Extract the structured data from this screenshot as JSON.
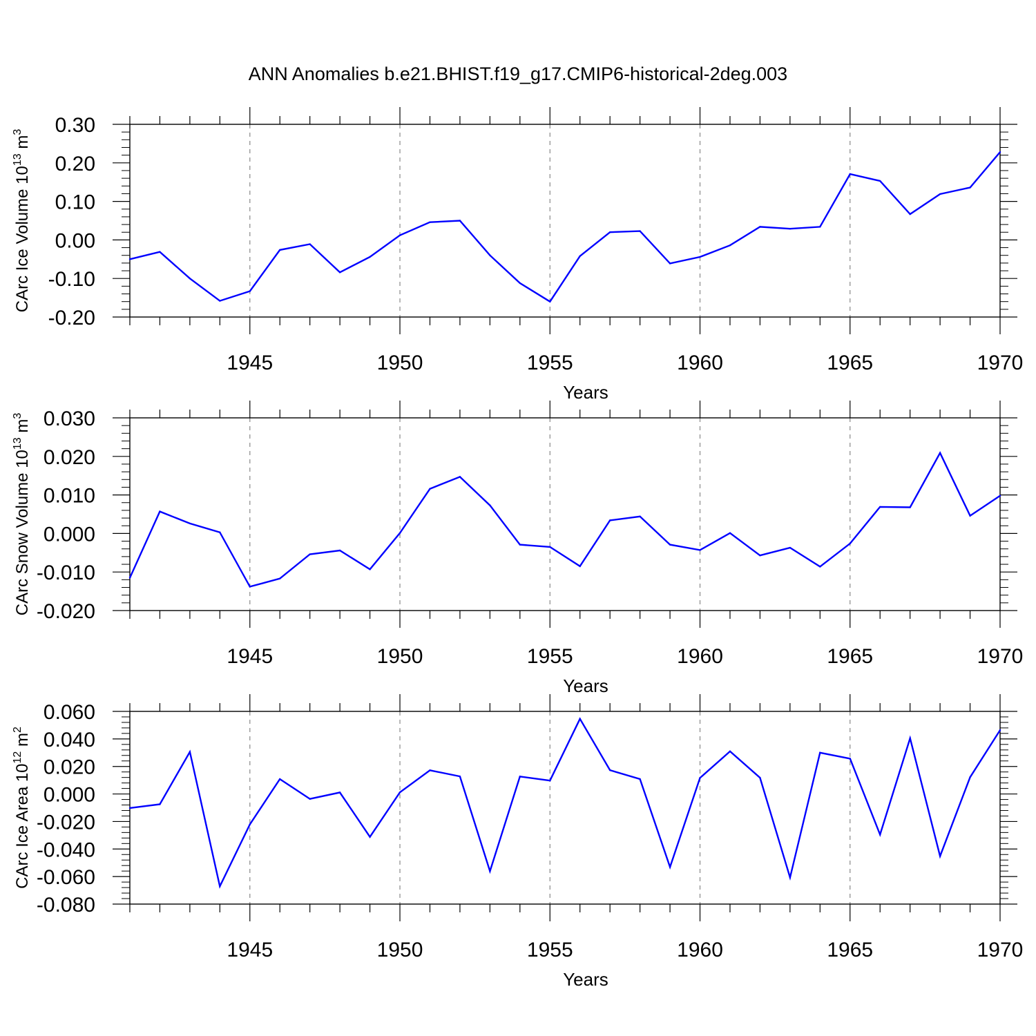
{
  "title": "ANN Anomalies b.e21.BHIST.f19_g17.CMIP6-historical-2deg.003",
  "line_color": "#0000ff",
  "chart_data": [
    {
      "type": "line",
      "ylabel": {
        "text": "CArc Ice Volume 10",
        "exp": "13",
        "unit": " m",
        "unit_exp": "3"
      },
      "xlabel": "Years",
      "xlim": [
        1941,
        1970
      ],
      "x_tick_labels": [
        "1945",
        "1950",
        "1955",
        "1960",
        "1965",
        "1970"
      ],
      "x_ticks": [
        1945,
        1950,
        1955,
        1960,
        1965,
        1970
      ],
      "ylim": [
        -0.2,
        0.3
      ],
      "y_ticks": [
        -0.2,
        -0.1,
        0.0,
        0.1,
        0.2,
        0.3
      ],
      "y_tick_labels": [
        "-0.20",
        "-0.10",
        "0.00",
        "0.10",
        "0.20",
        "0.30"
      ],
      "grid": "vertical dashed at major x ticks",
      "x": [
        1941,
        1942,
        1943,
        1944,
        1945,
        1946,
        1947,
        1948,
        1949,
        1950,
        1951,
        1952,
        1953,
        1954,
        1955,
        1956,
        1957,
        1958,
        1959,
        1960,
        1961,
        1962,
        1963,
        1964,
        1965,
        1966,
        1967,
        1968,
        1969,
        1970
      ],
      "values": [
        -0.05,
        -0.031,
        -0.1,
        -0.158,
        -0.133,
        -0.026,
        -0.011,
        -0.084,
        -0.044,
        0.012,
        0.046,
        0.05,
        -0.04,
        -0.112,
        -0.16,
        -0.042,
        0.02,
        0.023,
        -0.061,
        -0.044,
        -0.014,
        0.034,
        0.029,
        0.034,
        0.171,
        0.153,
        0.067,
        0.119,
        0.136,
        0.228
      ]
    },
    {
      "type": "line",
      "ylabel": {
        "text": "CArc Snow Volume 10",
        "exp": "13",
        "unit": " m",
        "unit_exp": "3"
      },
      "xlabel": "Years",
      "xlim": [
        1941,
        1970
      ],
      "x_tick_labels": [
        "1945",
        "1950",
        "1955",
        "1960",
        "1965",
        "1970"
      ],
      "x_ticks": [
        1945,
        1950,
        1955,
        1960,
        1965,
        1970
      ],
      "ylim": [
        -0.02,
        0.03
      ],
      "y_ticks": [
        -0.02,
        -0.01,
        0.0,
        0.01,
        0.02,
        0.03
      ],
      "y_tick_labels": [
        "-0.020",
        "-0.010",
        "0.000",
        "0.010",
        "0.020",
        "0.030"
      ],
      "grid": "vertical dashed at major x ticks",
      "x": [
        1941,
        1942,
        1943,
        1944,
        1945,
        1946,
        1947,
        1948,
        1949,
        1950,
        1951,
        1952,
        1953,
        1954,
        1955,
        1956,
        1957,
        1958,
        1959,
        1960,
        1961,
        1962,
        1963,
        1964,
        1965,
        1966,
        1967,
        1968,
        1969,
        1970
      ],
      "values": [
        -0.0115,
        0.0057,
        0.0026,
        0.0003,
        -0.0138,
        -0.0117,
        -0.0054,
        -0.0044,
        -0.0093,
        0.0001,
        0.0116,
        0.0147,
        0.0073,
        -0.0029,
        -0.0035,
        -0.0085,
        0.0034,
        0.0044,
        -0.0029,
        -0.0043,
        0.0001,
        -0.0057,
        -0.0037,
        -0.0086,
        -0.0026,
        0.0069,
        0.0068,
        0.0209,
        0.0046,
        0.0098
      ]
    },
    {
      "type": "line",
      "ylabel": {
        "text": "CArc Ice Area 10",
        "exp": "12",
        "unit": " m",
        "unit_exp": "2"
      },
      "xlabel": "Years",
      "xlim": [
        1941,
        1970
      ],
      "x_tick_labels": [
        "1945",
        "1950",
        "1955",
        "1960",
        "1965",
        "1970"
      ],
      "x_ticks": [
        1945,
        1950,
        1955,
        1960,
        1965,
        1970
      ],
      "ylim": [
        -0.08,
        0.06
      ],
      "y_ticks": [
        -0.08,
        -0.06,
        -0.04,
        -0.02,
        0.0,
        0.02,
        0.04,
        0.06
      ],
      "y_tick_labels": [
        "-0.080",
        "-0.060",
        "-0.040",
        "-0.020",
        "0.000",
        "0.020",
        "0.040",
        "0.060"
      ],
      "grid": "vertical dashed at major x ticks",
      "x": [
        1941,
        1942,
        1943,
        1944,
        1945,
        1946,
        1947,
        1948,
        1949,
        1950,
        1951,
        1952,
        1953,
        1954,
        1955,
        1956,
        1957,
        1958,
        1959,
        1960,
        1961,
        1962,
        1963,
        1964,
        1965,
        1966,
        1967,
        1968,
        1969,
        1970
      ],
      "values": [
        -0.0102,
        -0.0075,
        0.0306,
        -0.0671,
        -0.0221,
        0.0108,
        -0.0036,
        0.0011,
        -0.0312,
        0.0012,
        0.0172,
        0.0128,
        -0.0561,
        0.0127,
        0.0097,
        0.0546,
        0.0173,
        0.0108,
        -0.0531,
        0.0117,
        0.031,
        0.0118,
        -0.0607,
        0.03,
        0.0257,
        -0.0295,
        0.0405,
        -0.0452,
        0.0122,
        0.0464
      ]
    }
  ]
}
